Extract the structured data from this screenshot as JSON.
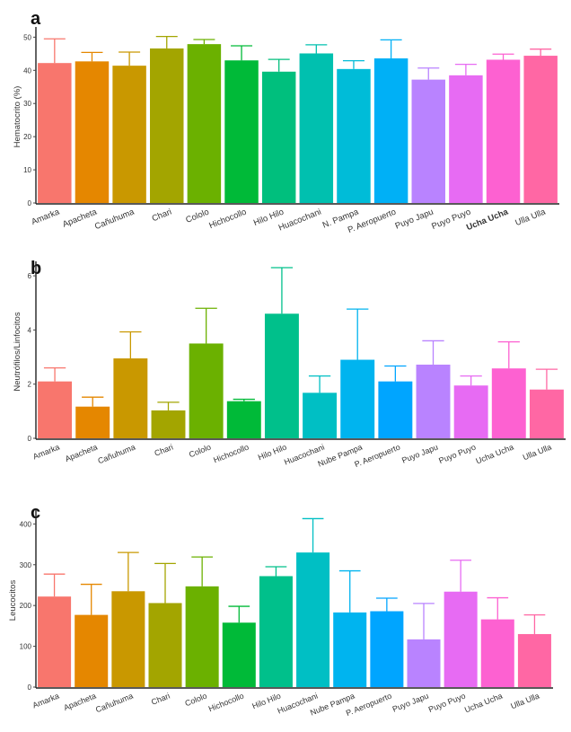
{
  "chart_data": [
    {
      "panel": "a",
      "type": "bar",
      "ylabel": "Hematocrito (%)",
      "ylim": [
        0,
        52
      ],
      "yticks": [
        0,
        10,
        20,
        30,
        40,
        50
      ],
      "grid": false,
      "categories": [
        "Amarka",
        "Apacheta",
        "Cañuhuma",
        "Chari",
        "Cololo",
        "Hichocollo",
        "Hilo Hilo",
        "Huacochani",
        "N. Pampa",
        "P. Aeropuerto",
        "Puyo Japu",
        "Puyo Puyo",
        "Ucha Ucha",
        "Ulla Ulla"
      ],
      "values": [
        42.2,
        42.7,
        41.4,
        46.6,
        47.9,
        43.0,
        39.6,
        45.1,
        40.4,
        43.6,
        37.2,
        38.5,
        43.2,
        44.4
      ],
      "errors": [
        7.3,
        2.7,
        4.1,
        3.6,
        1.4,
        4.4,
        3.7,
        2.6,
        2.5,
        5.6,
        3.5,
        3.3,
        1.7,
        2.0
      ],
      "colors": [
        "#F8766D",
        "#E58700",
        "#C99800",
        "#A3A500",
        "#6BB100",
        "#00BA38",
        "#00BF7D",
        "#00C0AF",
        "#00BCD8",
        "#00B0F6",
        "#B983FF",
        "#E76BF3",
        "#FD61D1",
        "#FF67A4"
      ]
    },
    {
      "panel": "b",
      "type": "bar",
      "ylabel": "Neutrófilos/Linfocitos",
      "ylim": [
        0,
        6.4
      ],
      "yticks": [
        0,
        2,
        4,
        6
      ],
      "grid": false,
      "categories": [
        "Amarka",
        "Apacheta",
        "Cañuhuma",
        "Chari",
        "Cololo",
        "Hichocollo",
        "Hilo Hilo",
        "Huacochani",
        "Nube Pampa",
        "P. Aeropuerto",
        "Puyo Japu",
        "Puyo Puyo",
        "Ucha Ucha",
        "Ulla Ulla"
      ],
      "values": [
        2.1,
        1.17,
        2.95,
        1.03,
        3.5,
        1.37,
        4.6,
        1.68,
        2.9,
        2.1,
        2.72,
        1.95,
        2.58,
        1.8
      ],
      "errors": [
        0.5,
        0.35,
        0.98,
        0.3,
        1.3,
        0.07,
        1.7,
        0.62,
        1.87,
        0.57,
        0.88,
        0.35,
        0.98,
        0.75
      ],
      "colors": [
        "#F8766D",
        "#E58700",
        "#C99800",
        "#A3A500",
        "#6BB100",
        "#00BA38",
        "#00C08B",
        "#00BFC4",
        "#00B4EF",
        "#00A5FF",
        "#B983FF",
        "#E76BF3",
        "#FD61D1",
        "#FF67A4"
      ]
    },
    {
      "panel": "c",
      "type": "bar",
      "ylabel": "Leucocitos",
      "ylim": [
        0,
        425
      ],
      "yticks": [
        0,
        100,
        200,
        300,
        400
      ],
      "grid": false,
      "categories": [
        "Amarka",
        "Apacheta",
        "Cañuhuma",
        "Chari",
        "Cololo",
        "Hichocollo",
        "Hilo Hilo",
        "Huacochani",
        "Nube Pampa",
        "P. Aeropuerto",
        "Puyo Japu",
        "Puyo Puyo",
        "Ucha Ucha",
        "Ulla Ulla"
      ],
      "values": [
        222,
        177,
        235,
        206,
        247,
        158,
        272,
        330,
        183,
        186,
        117,
        234,
        166,
        130
      ],
      "errors": [
        55,
        75,
        95,
        97,
        72,
        40,
        23,
        83,
        102,
        32,
        88,
        77,
        53,
        47
      ],
      "colors": [
        "#F8766D",
        "#E58700",
        "#C99800",
        "#A3A500",
        "#6BB100",
        "#00BA38",
        "#00C08B",
        "#00BFC4",
        "#00B4EF",
        "#00A5FF",
        "#B983FF",
        "#E76BF3",
        "#FD61D1",
        "#FF67A4"
      ]
    }
  ]
}
